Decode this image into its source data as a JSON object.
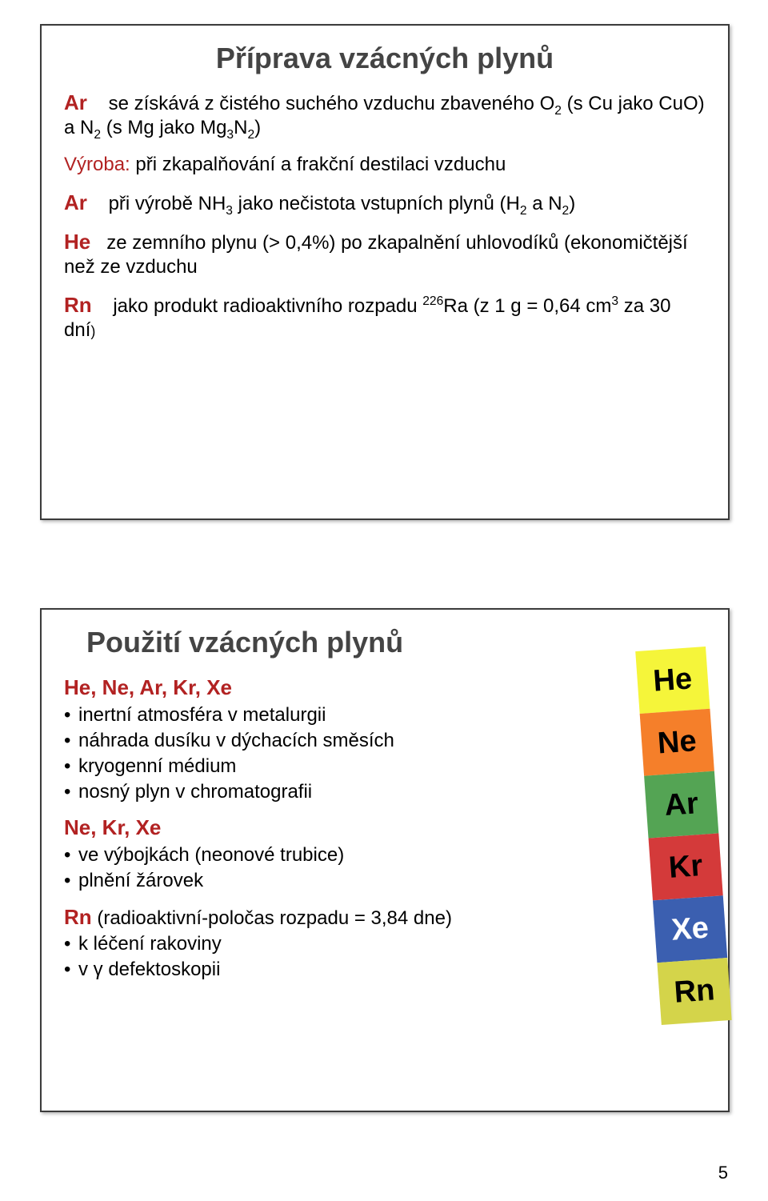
{
  "slide1": {
    "title": "Příprava vzácných plynů",
    "p1_label": "Ar",
    "p1_text_a": "se získává z čistého suchého vzduchu zbaveného O",
    "p1_text_b": " (s Cu jako CuO) a N",
    "p1_text_c": "  (s Mg jako Mg",
    "p1_text_d": "N",
    "p1_text_e": ")",
    "sub2": "2",
    "sub3": "3",
    "p2_keyword": "Výroba:",
    "p2_text": " při zkapalňování a frakční destilaci vzduchu",
    "p3_label": "Ar",
    "p3_text_a": "při výrobě NH",
    "p3_text_b": " jako nečistota vstupních plynů (H",
    "p3_text_c": " a N",
    "p3_text_d": ")",
    "p4_label": "He",
    "p4_text": "ze zemního plynu (> 0,4%) po zkapalnění uhlovodíků (ekonomičtější než ze vzduchu",
    "p5_label": "Rn",
    "p5_text_a": "jako produkt radioaktivního rozpadu ",
    "p5_sup": "226",
    "p5_text_b": "Ra (z 1 g = 0,64 cm",
    "p5_text_c": " za 30 dní",
    "p5_text_d": ")",
    "sup3": "3"
  },
  "slide2": {
    "title": "Použití vzácných plynů",
    "group1_header": "He, Ne, Ar, Kr,  Xe",
    "group1_items": [
      "inertní atmosféra v metalurgii",
      "náhrada dusíku v dýchacích  směsích",
      "kryogenní médium",
      "nosný plyn v chromatografii"
    ],
    "group2_header": "Ne,  Kr,  Xe",
    "group2_items": [
      "ve výbojkách (neonové trubice)",
      "plnění žárovek"
    ],
    "group3_label": "Rn",
    "group3_first": " (radioaktivní-poločas rozpadu = 3,84 dne)",
    "group3_items": [
      "k léčení rakoviny",
      "v γ defektoskopii"
    ],
    "ptable": [
      {
        "sym": "He",
        "bg": "#f5f53a",
        "fg": "#000000"
      },
      {
        "sym": "Ne",
        "bg": "#f57f2a",
        "fg": "#000000"
      },
      {
        "sym": "Ar",
        "bg": "#54a454",
        "fg": "#000000"
      },
      {
        "sym": "Kr",
        "bg": "#d43a3a",
        "fg": "#000000"
      },
      {
        "sym": "Xe",
        "bg": "#3b5fb0",
        "fg": "#ffffff"
      },
      {
        "sym": "Rn",
        "bg": "#d4d44a",
        "fg": "#000000"
      }
    ]
  },
  "page_number": "5"
}
